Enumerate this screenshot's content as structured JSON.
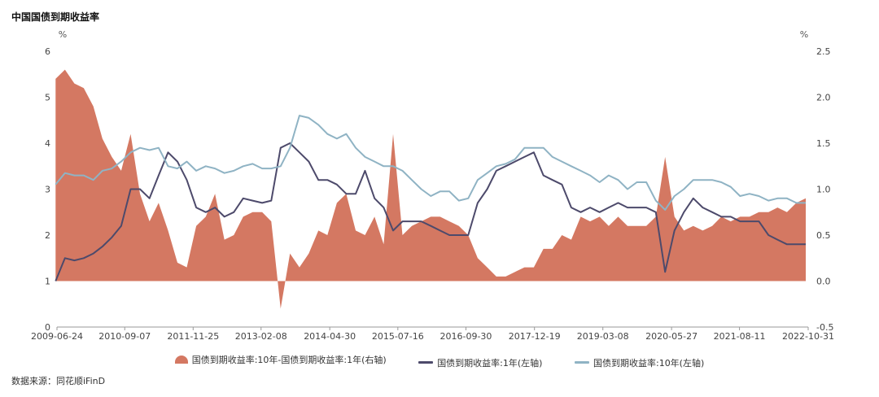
{
  "header": {
    "title": "中国国债到期收益率"
  },
  "footer": {
    "source": "数据来源：同花顺iFinD"
  },
  "chart_data": {
    "type": "area",
    "title": "中国国债到期收益率",
    "left_axis": {
      "unit": "%",
      "ylim": [
        0,
        6
      ],
      "ticks": [
        0,
        1,
        2,
        3,
        4,
        5,
        6
      ],
      "tick_labels": [
        "0",
        "1",
        "2",
        "3",
        "4",
        "5",
        "6"
      ]
    },
    "right_axis": {
      "unit": "%",
      "ylim": [
        -0.5,
        2.5
      ],
      "ticks": [
        -0.5,
        0.0,
        0.5,
        1.0,
        1.5,
        2.0,
        2.5
      ],
      "tick_labels": [
        "-0.5",
        "0.0",
        "0.5",
        "1.0",
        "1.5",
        "2.0",
        "2.5"
      ]
    },
    "x_axis": {
      "start": "2009-06-24",
      "end": "2022-10-31",
      "ticks": [
        "2009-06-24",
        "2010-09-07",
        "2011-11-25",
        "2013-02-08",
        "2014-04-30",
        "2015-07-16",
        "2016-09-30",
        "2017-12-19",
        "2019-03-08",
        "2020-05-27",
        "2021-08-11",
        "2022-10-31"
      ]
    },
    "grid": false,
    "legend_position": "bottom",
    "x": [
      "2009-06",
      "2009-08",
      "2009-10",
      "2009-12",
      "2010-02",
      "2010-04",
      "2010-06",
      "2010-08",
      "2010-10",
      "2010-12",
      "2011-02",
      "2011-04",
      "2011-06",
      "2011-08",
      "2011-10",
      "2011-12",
      "2012-02",
      "2012-04",
      "2012-06",
      "2012-08",
      "2012-10",
      "2012-12",
      "2013-02",
      "2013-04",
      "2013-06",
      "2013-08",
      "2013-10",
      "2013-12",
      "2014-02",
      "2014-04",
      "2014-06",
      "2014-08",
      "2014-10",
      "2014-12",
      "2015-02",
      "2015-04",
      "2015-06",
      "2015-08",
      "2015-10",
      "2015-12",
      "2016-02",
      "2016-04",
      "2016-06",
      "2016-08",
      "2016-10",
      "2016-12",
      "2017-02",
      "2017-04",
      "2017-06",
      "2017-08",
      "2017-10",
      "2017-12",
      "2018-02",
      "2018-04",
      "2018-06",
      "2018-08",
      "2018-10",
      "2018-12",
      "2019-02",
      "2019-04",
      "2019-06",
      "2019-08",
      "2019-10",
      "2019-12",
      "2020-02",
      "2020-04",
      "2020-06",
      "2020-08",
      "2020-10",
      "2020-12",
      "2021-02",
      "2021-04",
      "2021-06",
      "2021-08",
      "2021-10",
      "2021-12",
      "2022-02",
      "2022-04",
      "2022-06",
      "2022-08",
      "2022-10"
    ],
    "series": [
      {
        "name": "国债到期收益率:10年-国债到期收益率:1年(右轴)",
        "axis": "right",
        "color": "#d47862",
        "values": [
          2.2,
          2.3,
          2.15,
          2.1,
          1.9,
          1.55,
          1.35,
          1.2,
          1.6,
          0.95,
          0.65,
          0.85,
          0.55,
          0.2,
          0.15,
          0.6,
          0.7,
          0.95,
          0.45,
          0.5,
          0.7,
          0.75,
          0.75,
          0.65,
          -0.3,
          0.3,
          0.15,
          0.3,
          0.55,
          0.5,
          0.85,
          0.95,
          0.55,
          0.5,
          0.7,
          0.4,
          1.6,
          0.5,
          0.6,
          0.65,
          0.7,
          0.7,
          0.65,
          0.6,
          0.5,
          0.25,
          0.15,
          0.05,
          0.05,
          0.1,
          0.15,
          0.15,
          0.35,
          0.35,
          0.5,
          0.45,
          0.7,
          0.65,
          0.7,
          0.6,
          0.7,
          0.6,
          0.6,
          0.6,
          0.7,
          1.35,
          0.7,
          0.55,
          0.6,
          0.55,
          0.6,
          0.7,
          0.65,
          0.7,
          0.7,
          0.75,
          0.75,
          0.8,
          0.75,
          0.85,
          0.9
        ]
      },
      {
        "name": "国债到期收益率:1年(左轴)",
        "axis": "left",
        "color": "#4d4a6b",
        "values": [
          1.0,
          1.5,
          1.45,
          1.5,
          1.6,
          1.75,
          1.95,
          2.2,
          3.0,
          3.0,
          2.8,
          3.3,
          3.8,
          3.6,
          3.2,
          2.6,
          2.5,
          2.6,
          2.4,
          2.5,
          2.8,
          2.75,
          2.7,
          2.75,
          3.9,
          4.0,
          3.8,
          3.6,
          3.2,
          3.2,
          3.1,
          2.9,
          2.9,
          3.4,
          2.8,
          2.6,
          2.1,
          2.3,
          2.3,
          2.3,
          2.2,
          2.1,
          2.0,
          2.0,
          2.0,
          2.7,
          3.0,
          3.4,
          3.5,
          3.6,
          3.7,
          3.8,
          3.3,
          3.2,
          3.1,
          2.6,
          2.5,
          2.6,
          2.5,
          2.6,
          2.7,
          2.6,
          2.6,
          2.6,
          2.5,
          1.2,
          2.1,
          2.5,
          2.8,
          2.6,
          2.5,
          2.4,
          2.4,
          2.3,
          2.3,
          2.3,
          2.0,
          1.9,
          1.8,
          1.8,
          1.8
        ]
      },
      {
        "name": "国债到期收益率:10年(左轴)",
        "axis": "left",
        "color": "#8fb3c4",
        "values": [
          3.1,
          3.35,
          3.3,
          3.3,
          3.2,
          3.4,
          3.45,
          3.6,
          3.8,
          3.9,
          3.85,
          3.9,
          3.5,
          3.45,
          3.6,
          3.4,
          3.5,
          3.45,
          3.35,
          3.4,
          3.5,
          3.55,
          3.45,
          3.45,
          3.5,
          3.9,
          4.6,
          4.55,
          4.4,
          4.2,
          4.1,
          4.2,
          3.9,
          3.7,
          3.6,
          3.5,
          3.5,
          3.4,
          3.2,
          3.0,
          2.85,
          2.95,
          2.95,
          2.75,
          2.8,
          3.2,
          3.35,
          3.5,
          3.55,
          3.65,
          3.9,
          3.9,
          3.9,
          3.7,
          3.6,
          3.5,
          3.4,
          3.3,
          3.15,
          3.3,
          3.2,
          3.0,
          3.15,
          3.15,
          2.75,
          2.55,
          2.85,
          3.0,
          3.2,
          3.2,
          3.2,
          3.15,
          3.05,
          2.85,
          2.9,
          2.85,
          2.75,
          2.8,
          2.8,
          2.7,
          2.7
        ]
      }
    ]
  }
}
